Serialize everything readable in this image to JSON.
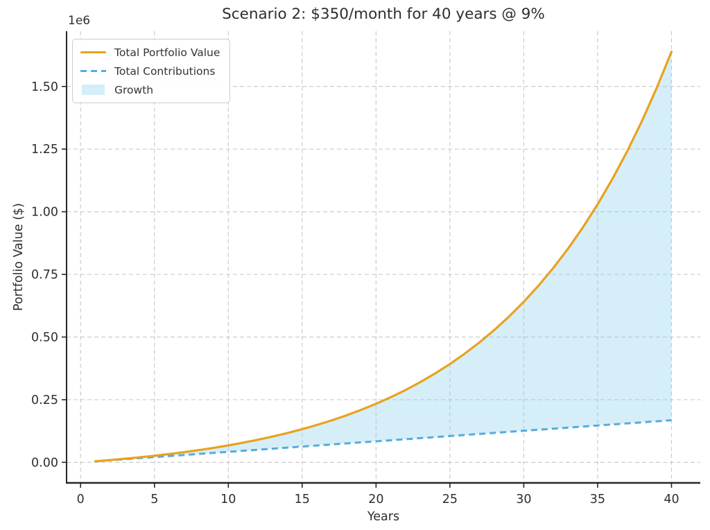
{
  "chart_data": {
    "type": "line",
    "title": "Scenario 2: $350/month for 40 years @ 9%",
    "xlabel": "Years",
    "ylabel": "Portfolio Value ($)",
    "y_offset_label": "1e6",
    "x": [
      1,
      2,
      3,
      4,
      5,
      6,
      7,
      8,
      9,
      10,
      11,
      12,
      13,
      14,
      15,
      16,
      17,
      18,
      19,
      20,
      21,
      22,
      23,
      24,
      25,
      26,
      27,
      28,
      29,
      30,
      31,
      32,
      33,
      34,
      35,
      36,
      37,
      38,
      39,
      40
    ],
    "series": [
      {
        "name": "Total Portfolio Value",
        "style": "solid",
        "color": "#E8A21D",
        "values": [
          4378,
          9166,
          14404,
          20132,
          26399,
          33253,
          40750,
          48950,
          57919,
          67730,
          78461,
          90199,
          103039,
          117082,
          132443,
          149245,
          167623,
          187725,
          209712,
          233762,
          260069,
          288843,
          320317,
          354743,
          392400,
          433588,
          478641,
          527920,
          581822,
          640781,
          705271,
          775813,
          852971,
          937368,
          1029676,
          1130645,
          1241085,
          1361889,
          1494025,
          1638554
        ]
      },
      {
        "name": "Total Contributions",
        "style": "dashed",
        "color": "#55ABDE",
        "values": [
          4200,
          8400,
          12600,
          16800,
          21000,
          25200,
          29400,
          33600,
          37800,
          42000,
          46200,
          50400,
          54600,
          58800,
          63000,
          67200,
          71400,
          75600,
          79800,
          84000,
          88200,
          92400,
          96600,
          100800,
          105000,
          109200,
          113400,
          117600,
          121800,
          126000,
          130200,
          134400,
          138600,
          142800,
          147000,
          151200,
          155400,
          159600,
          163800,
          168000
        ]
      }
    ],
    "fill_between": {
      "name": "Growth",
      "upper": "Total Portfolio Value",
      "lower": "Total Contributions",
      "color": "#87CEEB",
      "opacity": 0.35
    },
    "x_ticks": [
      0,
      5,
      10,
      15,
      20,
      25,
      30,
      35,
      40
    ],
    "x_tick_labels": [
      "0",
      "5",
      "10",
      "15",
      "20",
      "25",
      "30",
      "35",
      "40"
    ],
    "y_ticks": [
      0,
      250000,
      500000,
      750000,
      1000000,
      1250000,
      1500000
    ],
    "y_tick_labels": [
      "0.00",
      "0.25",
      "0.50",
      "0.75",
      "1.00",
      "1.25",
      "1.50"
    ],
    "xlim": [
      -0.95,
      41.95
    ],
    "ylim": [
      -81928,
      1720482
    ],
    "grid": true,
    "grid_color": "#CCCCCC",
    "spine_color": "#262626",
    "tick_label_color": "#2E2E2E",
    "legend_position": "upper left"
  }
}
